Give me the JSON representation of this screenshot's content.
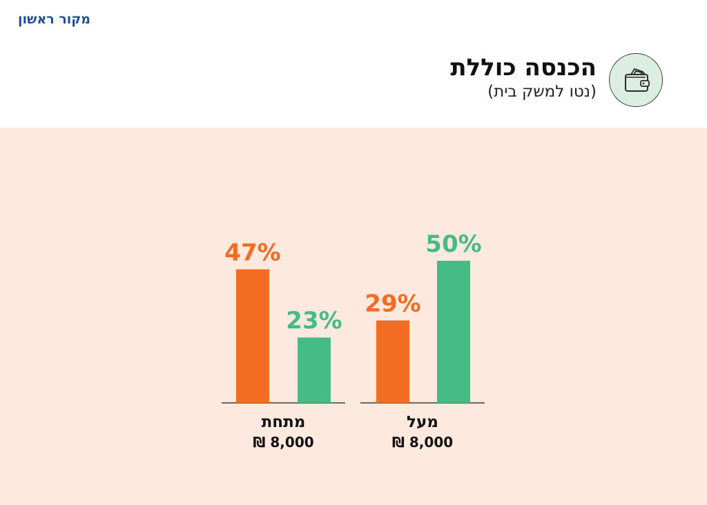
{
  "brand": "מקור ראשון",
  "header": {
    "title": "הכנסה כוללת",
    "subtitle": "(נטו למשק בית)",
    "icon": "wallet-icon"
  },
  "colors": {
    "orange": "#f26d21",
    "green": "#45bc83",
    "background": "#fde9de",
    "header_bg": "#ffffff",
    "brand": "#1f4e96",
    "badge": "#dbeee1"
  },
  "chart_data": {
    "type": "bar",
    "categories": [
      "מתחת",
      "מעל"
    ],
    "category_sublabels": [
      "8,000 ₪",
      "8,000 ₪"
    ],
    "series": [
      {
        "color": "#f26d21",
        "values": [
          47,
          29
        ]
      },
      {
        "color": "#45bc83",
        "values": [
          23,
          50
        ]
      }
    ],
    "value_labels": [
      [
        "47%",
        "23%"
      ],
      [
        "29%",
        "50%"
      ]
    ],
    "unit": "%",
    "ylim": [
      0,
      60
    ],
    "grid": false,
    "legend": "none"
  }
}
